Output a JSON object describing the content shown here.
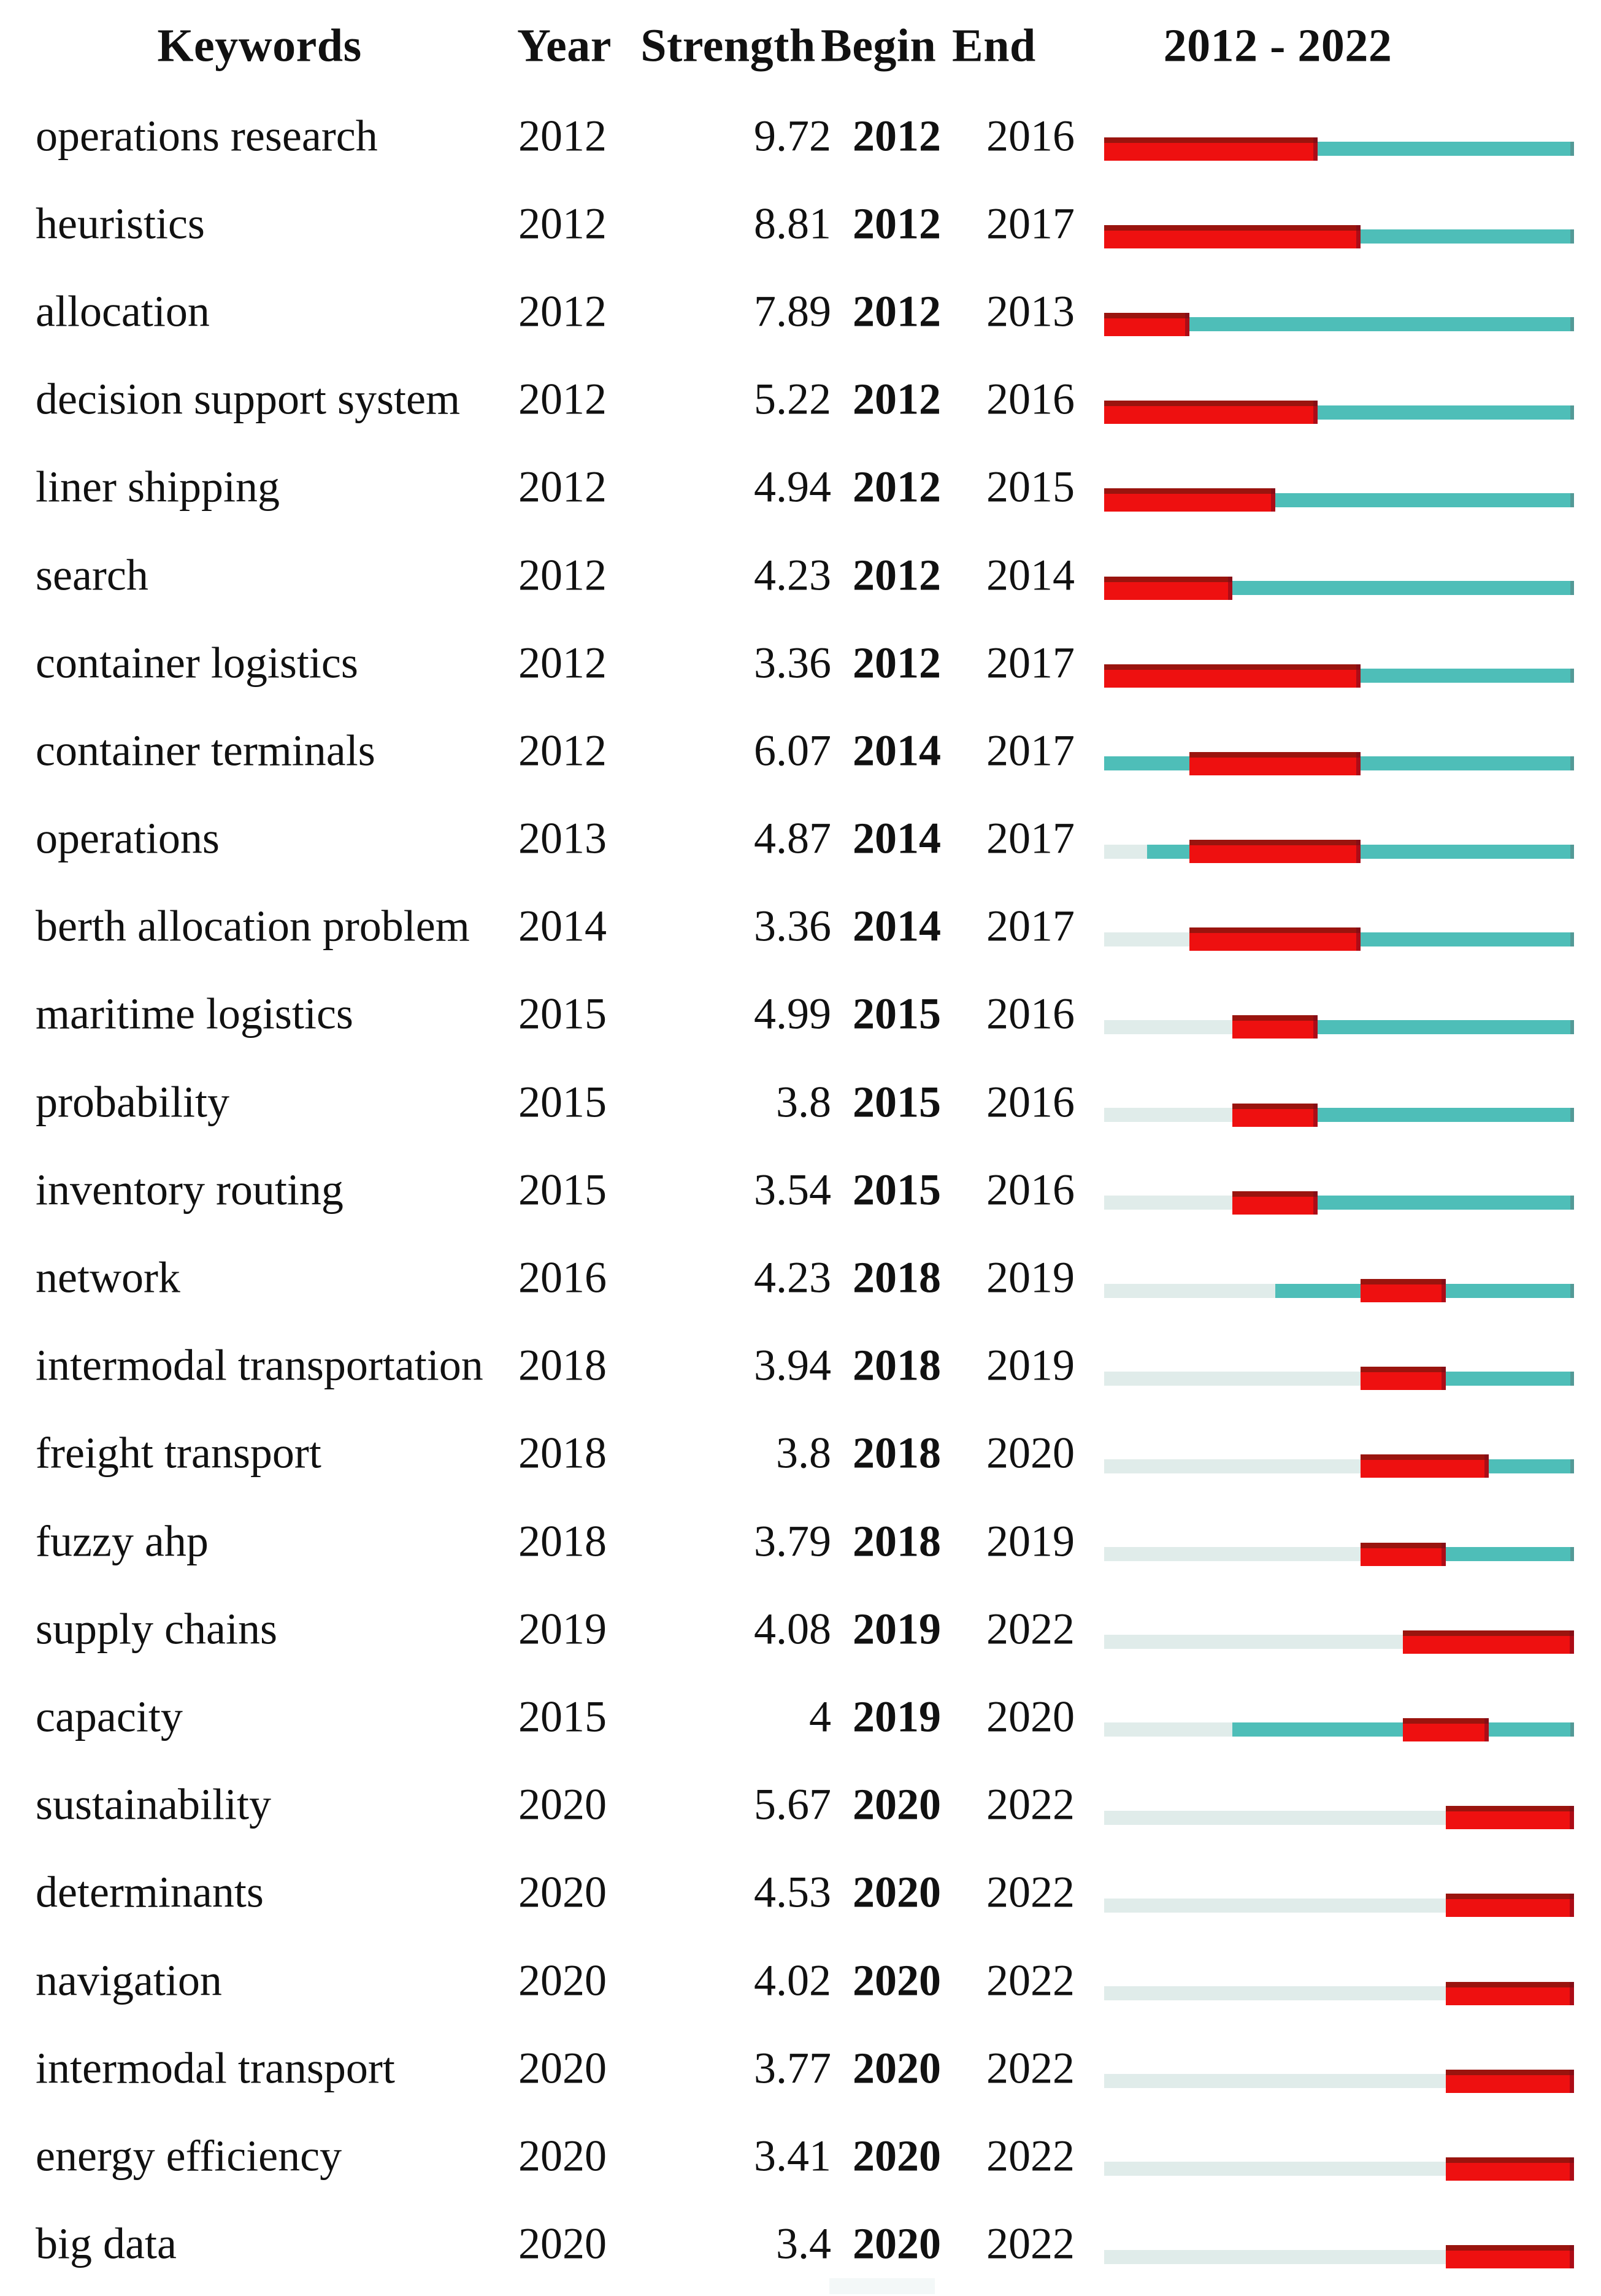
{
  "header": {
    "keywords": "Keywords",
    "year": "Year",
    "strength": "Strength",
    "begin": "Begin",
    "end": "End",
    "timeline": "2012 - 2022"
  },
  "colors": {
    "burst_red": "#ee1010",
    "burst_red_edge": "#9a140e",
    "active_teal": "#4ebeb8",
    "inactive_pale": "#e0ecea",
    "text": "#111111",
    "background": "#ffffff"
  },
  "chart_data": {
    "type": "table",
    "columns": [
      "Keywords",
      "Year",
      "Strength",
      "Begin",
      "End",
      "2012 - 2022"
    ],
    "timeline_range": [
      2012,
      2022
    ],
    "legend": {
      "burst_segment": "red thick bar = burst period (Begin to End)",
      "active_segment": "teal line = years keyword present outside burst",
      "inactive_segment": "pale line = years before keyword appeared"
    },
    "rows": [
      {
        "keyword": "operations research",
        "year": 2012,
        "strength": 9.72,
        "begin": 2012,
        "end": 2016
      },
      {
        "keyword": "heuristics",
        "year": 2012,
        "strength": 8.81,
        "begin": 2012,
        "end": 2017
      },
      {
        "keyword": "allocation",
        "year": 2012,
        "strength": 7.89,
        "begin": 2012,
        "end": 2013
      },
      {
        "keyword": "decision support system",
        "year": 2012,
        "strength": 5.22,
        "begin": 2012,
        "end": 2016
      },
      {
        "keyword": "liner shipping",
        "year": 2012,
        "strength": 4.94,
        "begin": 2012,
        "end": 2015
      },
      {
        "keyword": "search",
        "year": 2012,
        "strength": 4.23,
        "begin": 2012,
        "end": 2014
      },
      {
        "keyword": "container logistics",
        "year": 2012,
        "strength": 3.36,
        "begin": 2012,
        "end": 2017
      },
      {
        "keyword": "container terminals",
        "year": 2012,
        "strength": 6.07,
        "begin": 2014,
        "end": 2017
      },
      {
        "keyword": "operations",
        "year": 2013,
        "strength": 4.87,
        "begin": 2014,
        "end": 2017
      },
      {
        "keyword": "berth allocation problem",
        "year": 2014,
        "strength": 3.36,
        "begin": 2014,
        "end": 2017
      },
      {
        "keyword": "maritime logistics",
        "year": 2015,
        "strength": 4.99,
        "begin": 2015,
        "end": 2016
      },
      {
        "keyword": "probability",
        "year": 2015,
        "strength": 3.8,
        "begin": 2015,
        "end": 2016
      },
      {
        "keyword": "inventory routing",
        "year": 2015,
        "strength": 3.54,
        "begin": 2015,
        "end": 2016
      },
      {
        "keyword": "network",
        "year": 2016,
        "strength": 4.23,
        "begin": 2018,
        "end": 2019
      },
      {
        "keyword": "intermodal transportation",
        "year": 2018,
        "strength": 3.94,
        "begin": 2018,
        "end": 2019
      },
      {
        "keyword": "freight transport",
        "year": 2018,
        "strength": 3.8,
        "begin": 2018,
        "end": 2020
      },
      {
        "keyword": "fuzzy ahp",
        "year": 2018,
        "strength": 3.79,
        "begin": 2018,
        "end": 2019
      },
      {
        "keyword": "supply chains",
        "year": 2019,
        "strength": 4.08,
        "begin": 2019,
        "end": 2022
      },
      {
        "keyword": "capacity",
        "year": 2015,
        "strength": 4,
        "begin": 2019,
        "end": 2020
      },
      {
        "keyword": "sustainability",
        "year": 2020,
        "strength": 5.67,
        "begin": 2020,
        "end": 2022
      },
      {
        "keyword": "determinants",
        "year": 2020,
        "strength": 4.53,
        "begin": 2020,
        "end": 2022
      },
      {
        "keyword": "navigation",
        "year": 2020,
        "strength": 4.02,
        "begin": 2020,
        "end": 2022
      },
      {
        "keyword": "intermodal transport",
        "year": 2020,
        "strength": 3.77,
        "begin": 2020,
        "end": 2022
      },
      {
        "keyword": "energy efficiency",
        "year": 2020,
        "strength": 3.41,
        "begin": 2020,
        "end": 2022
      },
      {
        "keyword": "big data",
        "year": 2020,
        "strength": 3.4,
        "begin": 2020,
        "end": 2022
      }
    ]
  }
}
